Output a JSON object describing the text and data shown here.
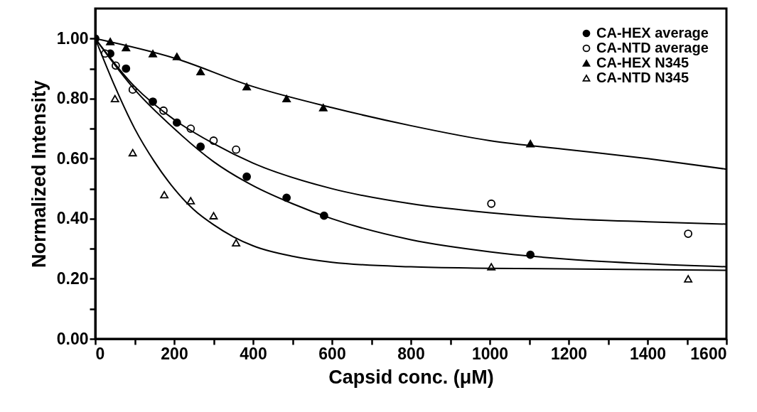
{
  "chart_data": {
    "type": "scatter",
    "xlabel": "Capsid conc. (μM)",
    "ylabel": "Normalized Intensity",
    "xlim": [
      0,
      1600
    ],
    "ylim": [
      0,
      1.1
    ],
    "xticks": [
      0,
      {
        "value": 100,
        "label": null
      },
      200,
      {
        "value": 300,
        "label": null
      },
      400,
      {
        "value": 500,
        "label": null
      },
      600,
      {
        "value": 700,
        "label": null
      },
      800,
      {
        "value": 900,
        "label": null
      },
      1000,
      {
        "value": 1100,
        "label": null
      },
      1200,
      {
        "value": 1300,
        "label": null
      },
      1400,
      {
        "value": 1500,
        "label": null
      },
      1600
    ],
    "yticks": [
      {
        "value": 0,
        "label": "0.00"
      },
      {
        "value": 0.1,
        "label": null
      },
      {
        "value": 0.2,
        "label": "0.20"
      },
      {
        "value": 0.3,
        "label": null
      },
      {
        "value": 0.4,
        "label": "0.40"
      },
      {
        "value": 0.5,
        "label": null
      },
      {
        "value": 0.6,
        "label": "0.60"
      },
      {
        "value": 0.7,
        "label": null
      },
      {
        "value": 0.8,
        "label": "0.80"
      },
      {
        "value": 0.9,
        "label": null
      },
      {
        "value": 1.0,
        "label": "1.00"
      }
    ],
    "legend": "top right",
    "series": [
      {
        "name": "CA-HEX average",
        "type": "scatter",
        "marker": "circle",
        "color": "#000000",
        "x": [
          0,
          38,
          78,
          146,
          207,
          267,
          384,
          485,
          580,
          1103
        ],
        "values": [
          1.0,
          0.95,
          0.9,
          0.79,
          0.72,
          0.64,
          0.54,
          0.47,
          0.41,
          0.28
        ]
      },
      {
        "name": "CA-NTD average",
        "type": "scatter",
        "marker": "circle-open",
        "color": "#000000",
        "x": [
          25,
          52,
          95,
          173,
          242,
          300,
          357,
          1004,
          1503
        ],
        "values": [
          0.95,
          0.91,
          0.83,
          0.76,
          0.7,
          0.66,
          0.63,
          0.45,
          0.35
        ]
      },
      {
        "name": "CA-HEX N345",
        "type": "scatter",
        "marker": "triangle",
        "color": "#000000",
        "x": [
          38,
          78,
          146,
          207,
          267,
          384,
          485,
          578,
          1103
        ],
        "values": [
          0.99,
          0.97,
          0.95,
          0.94,
          0.89,
          0.84,
          0.8,
          0.77,
          0.65
        ]
      },
      {
        "name": "CA-NTD N345",
        "type": "scatter",
        "marker": "triangle-open",
        "color": "#000000",
        "x": [
          50,
          95,
          175,
          242,
          300,
          357,
          1004,
          1503
        ],
        "values": [
          0.8,
          0.62,
          0.48,
          0.46,
          0.41,
          0.32,
          0.24,
          0.2
        ]
      },
      {
        "type": "line",
        "color": "#000000",
        "x": [
          0,
          200,
          400,
          600,
          800,
          1000,
          1200,
          1400,
          1600
        ],
        "values": [
          1.0,
          0.935,
          0.84,
          0.77,
          0.71,
          0.66,
          0.63,
          0.6,
          0.565
        ]
      },
      {
        "type": "line",
        "color": "#000000",
        "x": [
          0,
          100,
          200,
          300,
          400,
          500,
          600,
          800,
          1000,
          1200,
          1400,
          1600
        ],
        "values": [
          1.0,
          0.83,
          0.7,
          0.59,
          0.51,
          0.45,
          0.4,
          0.33,
          0.29,
          0.265,
          0.25,
          0.24
        ]
      },
      {
        "type": "line",
        "color": "#000000",
        "x": [
          0,
          100,
          200,
          300,
          400,
          600,
          800,
          1000,
          1200,
          1400,
          1600
        ],
        "values": [
          1.0,
          0.84,
          0.73,
          0.65,
          0.585,
          0.5,
          0.45,
          0.42,
          0.4,
          0.39,
          0.382
        ]
      },
      {
        "type": "line",
        "color": "#000000",
        "x": [
          0,
          50,
          100,
          150,
          200,
          250,
          300,
          350,
          400,
          500,
          600,
          800,
          1000,
          1600
        ],
        "values": [
          1.0,
          0.84,
          0.7,
          0.59,
          0.5,
          0.43,
          0.38,
          0.34,
          0.31,
          0.275,
          0.255,
          0.24,
          0.235,
          0.228
        ]
      }
    ]
  }
}
